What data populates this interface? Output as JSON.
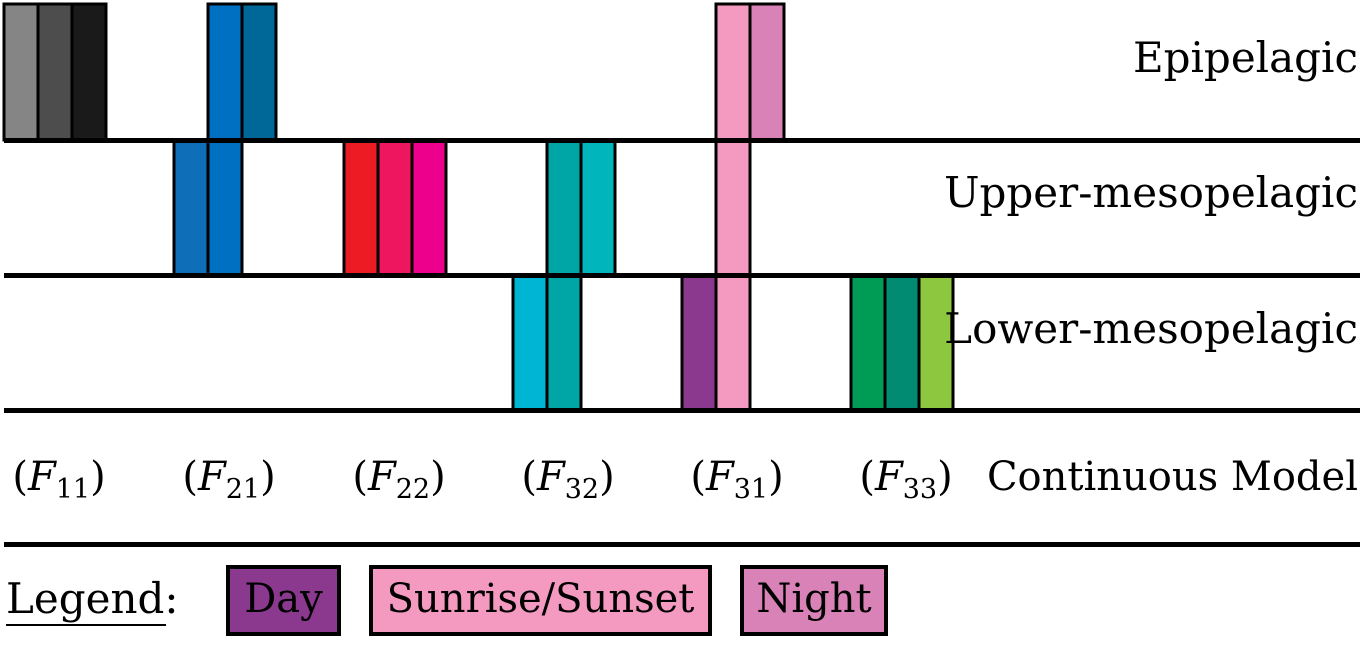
{
  "zones": [
    {
      "id": "epi",
      "label": "Epipelagic"
    },
    {
      "id": "upper",
      "label": "Upper-mesopelagic"
    },
    {
      "id": "lower",
      "label": "Lower-mesopelagic"
    }
  ],
  "columns": [
    {
      "model": "F",
      "sub": "11",
      "bars": [
        {
          "color": "#858585",
          "zones": [
            "epi"
          ]
        },
        {
          "color": "#4d4d4d",
          "zones": [
            "epi"
          ]
        },
        {
          "color": "#1a1a1a",
          "zones": [
            "epi"
          ]
        }
      ]
    },
    {
      "model": "F",
      "sub": "21",
      "bars": [
        {
          "color": "#0e6eb8",
          "zones": [
            "upper"
          ]
        },
        {
          "color": "#0071c2",
          "zones": [
            "epi",
            "upper"
          ]
        },
        {
          "color": "#006799",
          "zones": [
            "epi"
          ]
        }
      ]
    },
    {
      "model": "F",
      "sub": "22",
      "bars": [
        {
          "color": "#ed1c24",
          "zones": [
            "upper"
          ]
        },
        {
          "color": "#ed165f",
          "zones": [
            "upper"
          ]
        },
        {
          "color": "#ec008c",
          "zones": [
            "upper"
          ]
        }
      ]
    },
    {
      "model": "F",
      "sub": "32",
      "bars": [
        {
          "color": "#00b4d3",
          "zones": [
            "lower"
          ]
        },
        {
          "color": "#00a6a6",
          "zones": [
            "upper",
            "lower"
          ]
        },
        {
          "color": "#00b6bc",
          "zones": [
            "upper"
          ]
        }
      ]
    },
    {
      "model": "F",
      "sub": "31",
      "bars": [
        {
          "color": "#8b388f",
          "zones": [
            "lower"
          ]
        },
        {
          "color": "#f49ac1",
          "zones": [
            "epi",
            "upper",
            "lower"
          ]
        },
        {
          "color": "#d882b8",
          "zones": [
            "epi"
          ]
        }
      ]
    },
    {
      "model": "F",
      "sub": "33",
      "bars": [
        {
          "color": "#009b55",
          "zones": [
            "lower"
          ]
        },
        {
          "color": "#008b72",
          "zones": [
            "lower"
          ]
        },
        {
          "color": "#8dc63f",
          "zones": [
            "lower"
          ]
        }
      ]
    }
  ],
  "model_row_label": "Continuous Model",
  "legend": {
    "title": "Legend:",
    "items": [
      {
        "label": "Day",
        "color": "#8b388f"
      },
      {
        "label": "Sunrise/Sunset",
        "color": "#f49ac1"
      },
      {
        "label": "Night",
        "color": "#d882b8"
      }
    ]
  }
}
